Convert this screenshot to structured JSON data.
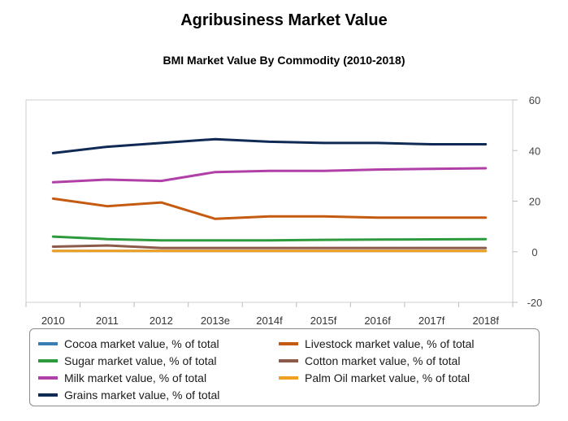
{
  "title": "Agribusiness Market Value",
  "subtitle": "BMI Market Value By Commodity (2010-2018)",
  "chart_data": {
    "type": "line",
    "title": "BMI Market Value By Commodity (2010-2018)",
    "xlabel": "",
    "ylabel": "",
    "categories": [
      "2010",
      "2011",
      "2012",
      "2013e",
      "2014f",
      "2015f",
      "2016f",
      "2017f",
      "2018f"
    ],
    "ylim": [
      -20,
      60
    ],
    "yticks": [
      60,
      40,
      20,
      0,
      -20
    ],
    "grid": false,
    "legend_position": "bottom",
    "series": [
      {
        "name": "Cocoa market value, % of total",
        "color": "#3a7fb4",
        "values": [
          0.3,
          0.3,
          0.3,
          0.3,
          0.3,
          0.3,
          0.3,
          0.3,
          0.3
        ]
      },
      {
        "name": "Livestock market value, % of total",
        "color": "#c55a11",
        "values": [
          21,
          18,
          19.5,
          13,
          14,
          14,
          13.5,
          13.5,
          13.5
        ]
      },
      {
        "name": "Sugar market value, % of total",
        "color": "#2e9a3e",
        "values": [
          6,
          5,
          4.5,
          4.5,
          4.5,
          4.7,
          4.8,
          4.9,
          5
        ]
      },
      {
        "name": "Cotton market value, % of total",
        "color": "#8b5a4a",
        "values": [
          2,
          2.5,
          1.5,
          1.5,
          1.5,
          1.5,
          1.5,
          1.5,
          1.5
        ]
      },
      {
        "name": "Milk market value, % of total",
        "color": "#b040a8",
        "values": [
          27.5,
          28.5,
          28,
          31.5,
          32,
          32,
          32.5,
          32.8,
          33
        ]
      },
      {
        "name": "Palm Oil market value, % of total",
        "color": "#f0a020",
        "values": [
          0.3,
          0.3,
          0.3,
          0.3,
          0.3,
          0.3,
          0.3,
          0.3,
          0.3
        ]
      },
      {
        "name": "Grains market value, % of total",
        "color": "#0f2a55",
        "values": [
          39,
          41.5,
          43,
          44.5,
          43.5,
          43,
          43,
          42.5,
          42.5
        ]
      }
    ]
  }
}
